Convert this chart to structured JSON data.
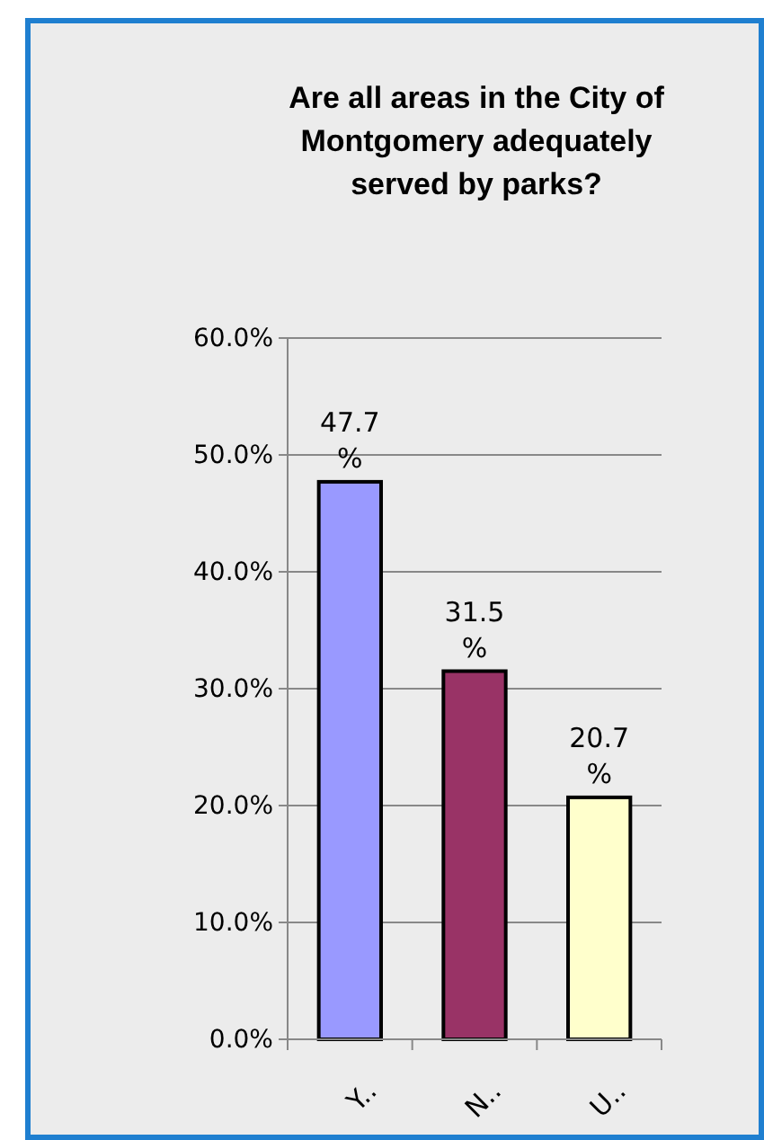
{
  "chart_data": {
    "type": "bar",
    "title": "Are all areas in the City of Montgomery adequately served by parks?",
    "categories": [
      "Y..",
      "N..",
      "U.."
    ],
    "values": [
      47.7,
      31.5,
      20.7
    ],
    "colors": [
      "#9999ff",
      "#993366",
      "#ffffcc"
    ],
    "value_labels": [
      "47.7 %",
      "31.5 %",
      "20.7 %"
    ],
    "ylim": [
      0,
      60
    ],
    "yticks": [
      {
        "value": 0,
        "label": "0.0%"
      },
      {
        "value": 10,
        "label": "10.0%"
      },
      {
        "value": 20,
        "label": "20.0%"
      },
      {
        "value": 30,
        "label": "30.0%"
      },
      {
        "value": 40,
        "label": "40.0%"
      },
      {
        "value": 50,
        "label": "50.0%"
      },
      {
        "value": 60,
        "label": "60.0%"
      }
    ],
    "grid": "y"
  }
}
